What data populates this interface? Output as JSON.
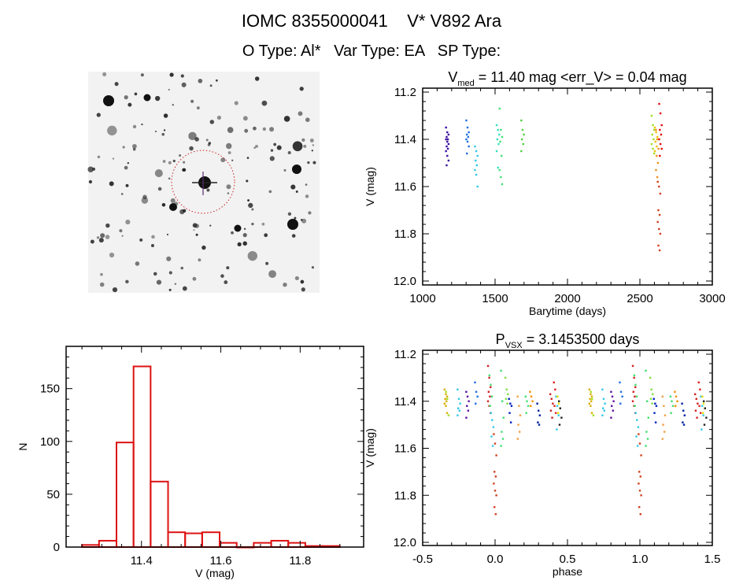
{
  "header": {
    "title": "IOMC 8355000041    V* V892 Ara",
    "subtitle": "O Type: Al*   Var Type: EA   SP Type:"
  },
  "finding_chart": {
    "circle_color": "#cc2222",
    "background": "#f2f2f2"
  },
  "chart_data": [
    {
      "type": "scatter",
      "title_main": "V",
      "title_sub": "med",
      "title_rest": " = 11.40 mag <err_V> = 0.04 mag",
      "xlabel": "Barytime (days)",
      "ylabel": "V (mag)",
      "xlim": [
        1000,
        3000
      ],
      "ylim": [
        12.0,
        11.2
      ],
      "xticks": [
        "1000",
        "1500",
        "2000",
        "2500",
        "3000"
      ],
      "yticks": [
        "11.2",
        "11.4",
        "11.6",
        "11.8",
        "12.0"
      ],
      "groups": [
        {
          "t": 1170,
          "color": "#3a10a0",
          "v": [
            11.35,
            11.37,
            11.38,
            11.39,
            11.4,
            11.4,
            11.41,
            11.42,
            11.43,
            11.44,
            11.45,
            11.47,
            11.49,
            11.51
          ]
        },
        {
          "t": 1310,
          "color": "#2070e0",
          "v": [
            11.32,
            11.35,
            11.37,
            11.38,
            11.39,
            11.4,
            11.41,
            11.43,
            11.46
          ]
        },
        {
          "t": 1370,
          "color": "#30c8e8",
          "v": [
            11.43,
            11.45,
            11.47,
            11.49,
            11.51,
            11.53,
            11.55,
            11.6
          ]
        },
        {
          "t": 1520,
          "color": "#30e0c0",
          "v": [
            11.34,
            11.36,
            11.38,
            11.4,
            11.42,
            11.45,
            11.52
          ]
        },
        {
          "t": 1540,
          "color": "#40e070",
          "v": [
            11.27,
            11.36,
            11.39,
            11.41,
            11.47,
            11.53,
            11.56,
            11.59
          ]
        },
        {
          "t": 1690,
          "color": "#50d040",
          "v": [
            11.32,
            11.36,
            11.38,
            11.4,
            11.42,
            11.45
          ]
        },
        {
          "t": 2590,
          "color": "#a0e020",
          "v": [
            11.3,
            11.34,
            11.36,
            11.38,
            11.4,
            11.42,
            11.44,
            11.46
          ]
        },
        {
          "t": 2612,
          "color": "#f0c000",
          "v": [
            11.35,
            11.37,
            11.39,
            11.41,
            11.43,
            11.45
          ]
        },
        {
          "t": 2620,
          "color": "#f09020",
          "v": [
            11.36,
            11.4,
            11.44,
            11.47,
            11.5,
            11.53,
            11.56
          ]
        },
        {
          "t": 2632,
          "color": "#d04020",
          "v": [
            11.58,
            11.6,
            11.63,
            11.7,
            11.72,
            11.75,
            11.78,
            11.8,
            11.85,
            11.87
          ]
        },
        {
          "t": 2642,
          "color": "#e01010",
          "v": [
            11.25,
            11.29,
            11.34,
            11.36,
            11.38,
            11.4,
            11.42,
            11.44,
            11.47
          ]
        }
      ]
    },
    {
      "type": "bar",
      "xlabel": "V (mag)",
      "ylabel": "N",
      "xlim": [
        11.21,
        11.96
      ],
      "ylim": [
        0,
        190
      ],
      "xticks": [
        "11.4",
        "11.6",
        "11.8"
      ],
      "yticks": [
        "0",
        "50",
        "100",
        "150"
      ],
      "bin_edges": [
        11.25,
        11.293,
        11.337,
        11.38,
        11.423,
        11.467,
        11.51,
        11.553,
        11.597,
        11.64,
        11.683,
        11.727,
        11.77,
        11.813,
        11.857,
        11.9
      ],
      "values": [
        2,
        6,
        99,
        171,
        62,
        14,
        13,
        14,
        4,
        0,
        4,
        6,
        4,
        1,
        1
      ],
      "color": "#dd1111"
    },
    {
      "type": "scatter",
      "title_main": "P",
      "title_sub": "VSX",
      "title_rest": " = 3.1453500 days",
      "xlabel": "phase",
      "ylabel": "V (mag)",
      "xlim": [
        -0.5,
        1.5
      ],
      "ylim": [
        12.0,
        11.2
      ],
      "xticks": [
        "-0.5",
        "0.0",
        "0.5",
        "1.0",
        "1.5"
      ],
      "yticks": [
        "11.2",
        "11.4",
        "11.6",
        "11.8",
        "12.0"
      ],
      "repeat_phase": true,
      "groups": [
        {
          "phase": -0.34,
          "color": "#d8b000",
          "v": [
            11.35,
            11.37,
            11.38,
            11.39,
            11.4,
            11.41,
            11.42,
            11.45
          ]
        },
        {
          "phase": -0.33,
          "color": "#a0e020",
          "v": [
            11.36,
            11.39,
            11.46
          ]
        },
        {
          "phase": -0.25,
          "color": "#30c8e8",
          "v": [
            11.35,
            11.39,
            11.41,
            11.43,
            11.44,
            11.46
          ]
        },
        {
          "phase": -0.19,
          "color": "#6010a0",
          "v": [
            11.36,
            11.38,
            11.4,
            11.42,
            11.44,
            11.47
          ]
        },
        {
          "phase": -0.13,
          "color": "#2070e0",
          "v": [
            11.32,
            11.36,
            11.38,
            11.41
          ]
        },
        {
          "phase": -0.04,
          "color": "#d02020",
          "v": [
            11.25,
            11.3,
            11.34,
            11.36,
            11.38,
            11.4,
            11.42,
            11.45
          ]
        },
        {
          "phase": -0.03,
          "color": "#40e070",
          "v": [
            11.29,
            11.33,
            11.38,
            11.42
          ]
        },
        {
          "phase": -0.02,
          "color": "#30c8e8",
          "v": [
            11.45,
            11.48,
            11.51,
            11.55,
            11.59
          ]
        },
        {
          "phase": 0.0,
          "color": "#d04020",
          "v": [
            11.54,
            11.58,
            11.63,
            11.7,
            11.72,
            11.75,
            11.78,
            11.8,
            11.85,
            11.88
          ]
        },
        {
          "phase": 0.05,
          "color": "#40e070",
          "v": [
            11.27,
            11.4,
            11.47,
            11.53,
            11.56,
            11.59
          ]
        },
        {
          "phase": 0.08,
          "color": "#80e040",
          "v": [
            11.3,
            11.35,
            11.37,
            11.39,
            11.41
          ]
        },
        {
          "phase": 0.105,
          "color": "#0020c0",
          "v": [
            11.39,
            11.41,
            11.42,
            11.45,
            11.49
          ]
        },
        {
          "phase": 0.165,
          "color": "#f0a040",
          "v": [
            11.38,
            11.42,
            11.46,
            11.5,
            11.53,
            11.56
          ]
        },
        {
          "phase": 0.22,
          "color": "#40e070",
          "v": [
            11.38,
            11.4,
            11.42,
            11.45
          ]
        },
        {
          "phase": 0.25,
          "color": "#f09000",
          "v": [
            11.36,
            11.38,
            11.4,
            11.42
          ]
        },
        {
          "phase": 0.3,
          "color": "#0020a0",
          "v": [
            11.41,
            11.44,
            11.46,
            11.49,
            11.5
          ]
        },
        {
          "phase": 0.39,
          "color": "#d02020",
          "v": [
            11.37,
            11.39,
            11.41,
            11.44,
            11.47
          ]
        },
        {
          "phase": 0.415,
          "color": "#e02020",
          "v": [
            11.32,
            11.35,
            11.38,
            11.42,
            11.45
          ]
        },
        {
          "phase": 0.43,
          "color": "#30c8e8",
          "v": [
            11.38,
            11.42,
            11.46,
            11.52
          ]
        },
        {
          "phase": 0.44,
          "color": "#e0e000",
          "v": [
            11.38,
            11.41,
            11.43,
            11.45
          ]
        },
        {
          "phase": 0.45,
          "color": "#202020",
          "v": [
            11.4,
            11.43,
            11.47,
            11.5
          ]
        }
      ]
    }
  ]
}
